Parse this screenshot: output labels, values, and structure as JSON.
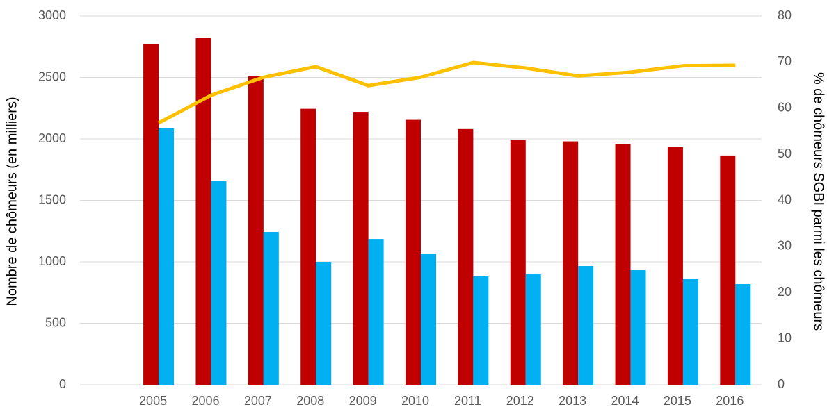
{
  "chart_data": {
    "type": "bar",
    "categories": [
      null,
      "2005",
      "2006",
      "2007",
      "2008",
      "2009",
      "2010",
      "2011",
      "2012",
      "2013",
      "2014",
      "2015",
      "2016"
    ],
    "series": [
      {
        "type": "bar",
        "color": "#c00000",
        "values": [
          null,
          2770,
          2820,
          2510,
          2245,
          2220,
          2155,
          2080,
          1990,
          1980,
          1960,
          1935,
          1865
        ]
      },
      {
        "type": "bar",
        "color": "#00b0f0",
        "values": [
          null,
          2085,
          1661,
          1243,
          1000,
          1186,
          1068,
          887,
          898,
          966,
          932,
          859,
          819
        ]
      },
      {
        "type": "line",
        "axis": "y2",
        "color": "#ffc000",
        "values": [
          null,
          56.8,
          62.8,
          66.7,
          69.0,
          64.9,
          66.7,
          69.9,
          68.7,
          67.0,
          67.8,
          69.2,
          69.3
        ]
      }
    ],
    "ylabel": "Nombre de chômeurs (en milliers)",
    "y2label": "% de chômeurs SGBI parmi les chômeurs",
    "ylim": [
      0,
      3000
    ],
    "yticks": [
      0,
      500,
      1000,
      1500,
      2000,
      2500,
      3000
    ],
    "y2lim": [
      0,
      80
    ],
    "y2ticks": [
      0,
      10,
      20,
      30,
      40,
      50,
      60,
      70,
      80
    ],
    "grid": true
  }
}
